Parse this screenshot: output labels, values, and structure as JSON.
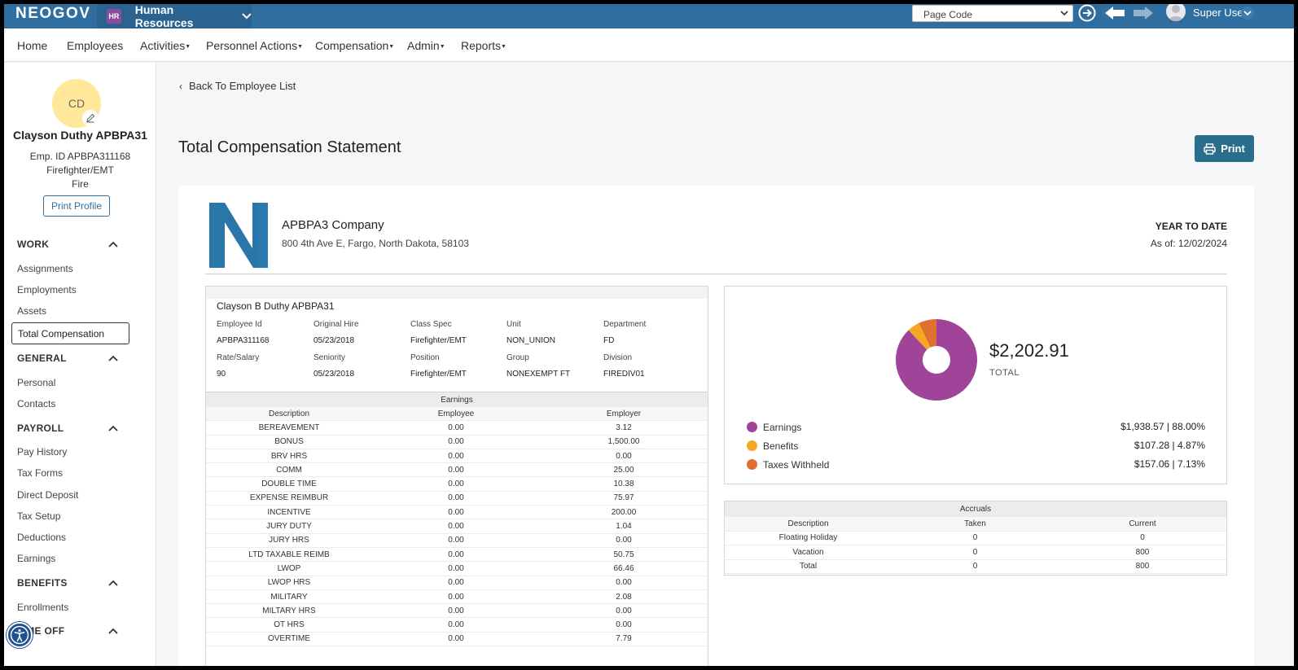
{
  "topbar": {
    "brand": "NEOGOV",
    "module_badge": "HR",
    "module_label": "Human Resources",
    "page_code_placeholder": "Page Code",
    "user_name": "Super User"
  },
  "nav": {
    "items": [
      {
        "label": "Home",
        "has_menu": false
      },
      {
        "label": "Employees",
        "has_menu": false
      },
      {
        "label": "Activities",
        "has_menu": true
      },
      {
        "label": "Personnel Actions",
        "has_menu": true
      },
      {
        "label": "Compensation",
        "has_menu": true
      },
      {
        "label": "Admin",
        "has_menu": true
      },
      {
        "label": "Reports",
        "has_menu": true
      }
    ]
  },
  "profile": {
    "initials": "CD",
    "name": "Clayson Duthy APBPA31",
    "emp_id": "Emp. ID APBPA311168",
    "title": "Firefighter/EMT",
    "department": "Fire",
    "print_profile": "Print Profile"
  },
  "sidebar": {
    "sections": [
      {
        "title": "WORK",
        "items": [
          "Assignments",
          "Employments",
          "Assets",
          "Total Compensation"
        ]
      },
      {
        "title": "GENERAL",
        "items": [
          "Personal",
          "Contacts"
        ]
      },
      {
        "title": "PAYROLL",
        "items": [
          "Pay History",
          "Tax Forms",
          "Direct Deposit",
          "Tax Setup",
          "Deductions",
          "Earnings"
        ]
      },
      {
        "title": "BENEFITS",
        "items": [
          "Enrollments"
        ]
      },
      {
        "title": "TIME OFF",
        "items": []
      }
    ],
    "active_item": "Total Compensation"
  },
  "main": {
    "back_link": "Back To Employee List",
    "title": "Total Compensation Statement",
    "print_label": "Print"
  },
  "statement": {
    "company": "APBPA3 Company",
    "address": "800 4th Ave E, Fargo, North Dakota, 58103",
    "period_label": "YEAR TO DATE",
    "as_of": "As of: 12/02/2024",
    "employee": {
      "full_name": "Clayson B Duthy APBPA31",
      "fields": [
        {
          "label": "Employee Id",
          "value": "APBPA311168"
        },
        {
          "label": "Original Hire",
          "value": "05/23/2018"
        },
        {
          "label": "Class Spec",
          "value": "Firefighter/EMT"
        },
        {
          "label": "Unit",
          "value": "NON_UNION"
        },
        {
          "label": "Department",
          "value": "FD"
        },
        {
          "label": "Rate/Salary",
          "value": "90"
        },
        {
          "label": "Seniority",
          "value": "05/23/2018"
        },
        {
          "label": "Position",
          "value": "Firefighter/EMT"
        },
        {
          "label": "Group",
          "value": "NONEXEMPT FT"
        },
        {
          "label": "Division",
          "value": "FIREDIV01"
        }
      ]
    },
    "earnings": {
      "title": "Earnings",
      "columns": [
        "Description",
        "Employee",
        "Employer"
      ],
      "rows": [
        [
          "BEREAVEMENT",
          "0.00",
          "3.12"
        ],
        [
          "BONUS",
          "0.00",
          "1,500.00"
        ],
        [
          "BRV HRS",
          "0.00",
          "0.00"
        ],
        [
          "COMM",
          "0.00",
          "25.00"
        ],
        [
          "DOUBLE TIME",
          "0.00",
          "10.38"
        ],
        [
          "EXPENSE REIMBUR",
          "0.00",
          "75.97"
        ],
        [
          "INCENTIVE",
          "0.00",
          "200.00"
        ],
        [
          "JURY DUTY",
          "0.00",
          "1.04"
        ],
        [
          "JURY HRS",
          "0.00",
          "0.00"
        ],
        [
          "LTD TAXABLE REIMB",
          "0.00",
          "50.75"
        ],
        [
          "LWOP",
          "0.00",
          "66.46"
        ],
        [
          "LWOP HRS",
          "0.00",
          "0.00"
        ],
        [
          "MILITARY",
          "0.00",
          "2.08"
        ],
        [
          "MILTARY HRS",
          "0.00",
          "0.00"
        ],
        [
          "OT HRS",
          "0.00",
          "0.00"
        ],
        [
          "OVERTIME",
          "0.00",
          "7.79"
        ]
      ]
    },
    "summary": {
      "total_amount": "$2,202.91",
      "total_label": "TOTAL",
      "legend": [
        {
          "name": "Earnings",
          "value": "$1,938.57 | 88.00%",
          "color": "#a0449a",
          "percent": 88.0
        },
        {
          "name": "Benefits",
          "value": "$107.28 | 4.87%",
          "color": "#f5a623",
          "percent": 4.87
        },
        {
          "name": "Taxes Withheld",
          "value": "$157.06 | 7.13%",
          "color": "#e07030",
          "percent": 7.13
        }
      ]
    },
    "accruals": {
      "title": "Accruals",
      "columns": [
        "Description",
        "Taken",
        "Current"
      ],
      "rows": [
        [
          "Floating Holiday",
          "0",
          "0"
        ],
        [
          "Vacation",
          "0",
          "800"
        ],
        [
          "Total",
          "0",
          "800"
        ]
      ]
    }
  }
}
